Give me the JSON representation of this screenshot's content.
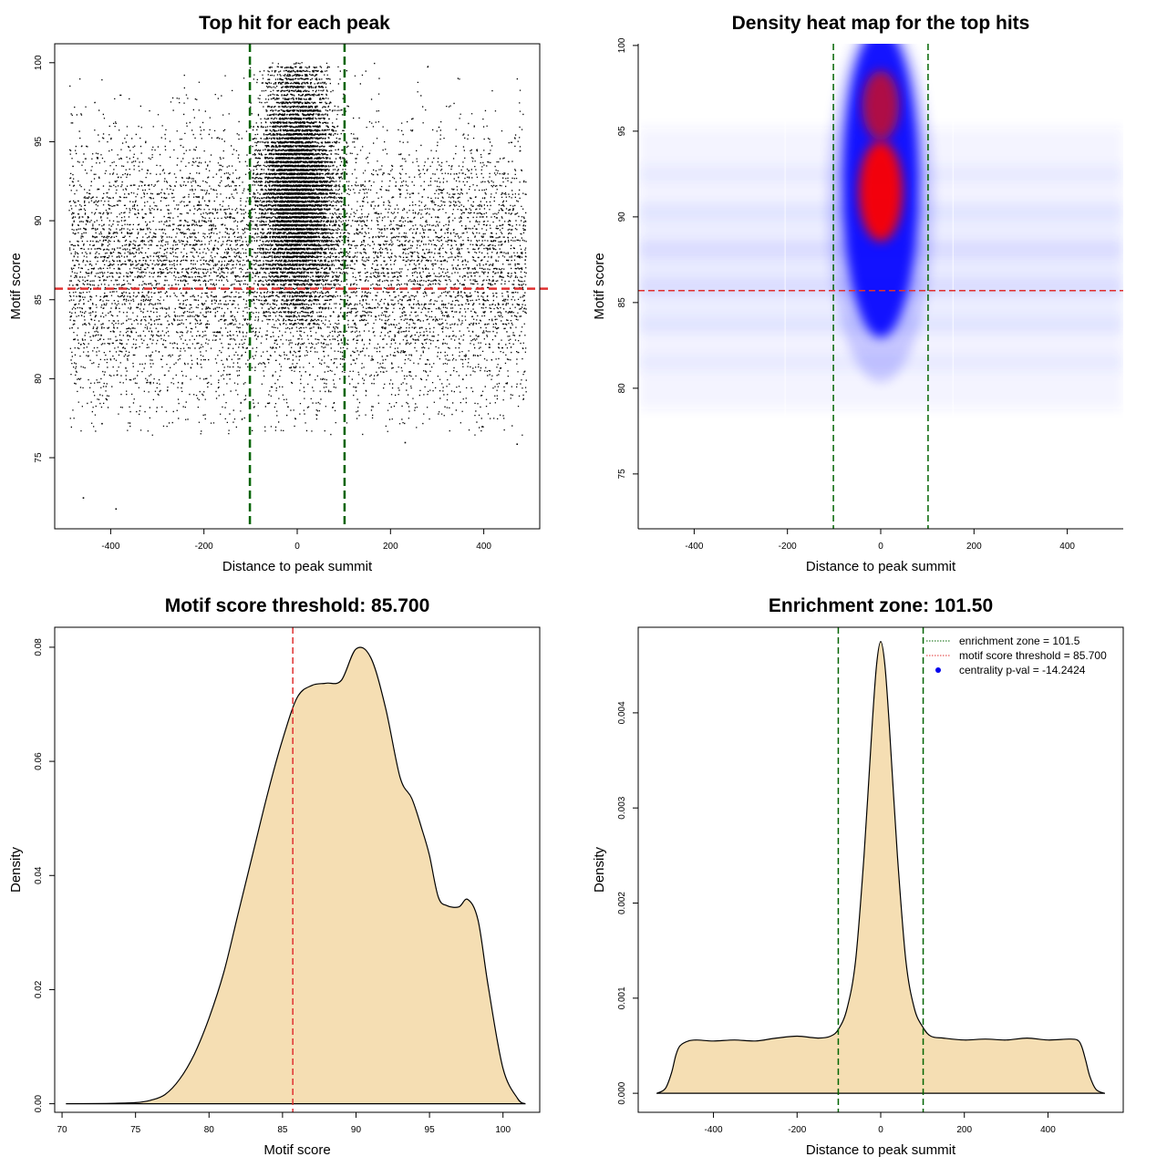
{
  "chart_data": [
    {
      "id": "scatter",
      "type": "scatter",
      "title": "Top hit for each peak",
      "xlabel": "Distance to peak summit",
      "ylabel": "Motif score",
      "xlim": [
        -520,
        520
      ],
      "ylim": [
        70.5,
        101.2
      ],
      "xticks": [
        -400,
        -200,
        0,
        200,
        400
      ],
      "yticks": [
        75,
        80,
        85,
        90,
        95,
        100
      ],
      "xtick_labels": [
        "-400",
        "-200",
        "0",
        "200",
        "400"
      ],
      "ytick_labels": [
        "75",
        "80",
        "85",
        "90",
        "95",
        "100"
      ],
      "vlines": [
        -101.5,
        101.5
      ],
      "hline": 85.7,
      "vline_color": "#006400",
      "hline_color": "#e03030",
      "point_color": "#000000",
      "description_of_points": {
        "background_x_range": [
          -490,
          490
        ],
        "background_y_mode": 87,
        "central_cluster_x": [
          -100,
          100
        ],
        "central_cluster_y_range": [
          83,
          100
        ]
      },
      "outliers": [
        [
          -460,
          72.5
        ],
        [
          -390,
          71.8
        ],
        [
          -420,
          77.2
        ],
        [
          230,
          76.0
        ],
        [
          470,
          75.9
        ]
      ]
    },
    {
      "id": "heatmap",
      "type": "heatmap",
      "title": "Density heat map for the top hits",
      "xlabel": "Distance to peak summit",
      "ylabel": "Motif score",
      "xlim": [
        -520,
        520
      ],
      "ylim": [
        71.8,
        100.1
      ],
      "xticks": [
        -400,
        -200,
        0,
        200,
        400
      ],
      "yticks": [
        75,
        80,
        85,
        90,
        95,
        100
      ],
      "xtick_labels": [
        "-400",
        "-200",
        "0",
        "200",
        "400"
      ],
      "ytick_labels": [
        "75",
        "80",
        "85",
        "90",
        "95",
        "100"
      ],
      "vlines": [
        -101.5,
        101.5
      ],
      "hline": 85.7,
      "vline_color": "#006400",
      "hline_color": "#e03030",
      "colors": [
        "#ffffff",
        "#0000ff",
        "#ff0000"
      ],
      "hotspot": {
        "x": 0,
        "y": 91.5
      }
    },
    {
      "id": "score_density",
      "type": "area",
      "title": "Motif score threshold: 85.700",
      "xlabel": "Motif score",
      "ylabel": "Density",
      "xlim": [
        69.5,
        102.5
      ],
      "ylim": [
        -0.0015,
        0.0835
      ],
      "xticks": [
        70,
        75,
        80,
        85,
        90,
        95,
        100
      ],
      "yticks": [
        0.0,
        0.02,
        0.04,
        0.06,
        0.08
      ],
      "xtick_labels": [
        "70",
        "75",
        "80",
        "85",
        "90",
        "95",
        "100"
      ],
      "ytick_labels": [
        "0.00",
        "0.02",
        "0.04",
        "0.06",
        "0.08"
      ],
      "vline": 85.7,
      "vline_color": "#e03030",
      "fill": "#f5deb3",
      "x": [
        70.3,
        73,
        75,
        76,
        77,
        78,
        79,
        80,
        81,
        82,
        83,
        84,
        85,
        86,
        87,
        88,
        89,
        90,
        91,
        92,
        93,
        93.8,
        94.5,
        95,
        95.6,
        96.2,
        97,
        97.6,
        98.3,
        99,
        100,
        101,
        101.5
      ],
      "values": [
        0,
        5e-05,
        0.0002,
        0.0006,
        0.0016,
        0.0043,
        0.0087,
        0.015,
        0.023,
        0.0335,
        0.044,
        0.0545,
        0.0638,
        0.0712,
        0.0733,
        0.0737,
        0.0742,
        0.0797,
        0.0782,
        0.0695,
        0.0572,
        0.0535,
        0.048,
        0.0435,
        0.0362,
        0.0347,
        0.0345,
        0.0358,
        0.0322,
        0.0205,
        0.0062,
        0.0009,
        0
      ]
    },
    {
      "id": "distance_density",
      "type": "area",
      "title": "Enrichment zone: 101.50",
      "xlabel": "Distance to peak summit",
      "ylabel": "Density",
      "xlim": [
        -580,
        580
      ],
      "ylim": [
        -0.0002,
        0.0049
      ],
      "xticks": [
        -400,
        -200,
        0,
        200,
        400
      ],
      "yticks": [
        0.0,
        0.001,
        0.002,
        0.003,
        0.004
      ],
      "xtick_labels": [
        "-400",
        "-200",
        "0",
        "200",
        "400"
      ],
      "ytick_labels": [
        "0.000",
        "0.001",
        "0.002",
        "0.003",
        "0.004"
      ],
      "vlines": [
        -101.5,
        101.5
      ],
      "vline_color": "#006400",
      "fill": "#f5deb3",
      "x": [
        -535,
        -515,
        -500,
        -490,
        -480,
        -460,
        -440,
        -400,
        -350,
        -300,
        -250,
        -200,
        -150,
        -120,
        -100,
        -80,
        -60,
        -40,
        -20,
        -10,
        0,
        10,
        20,
        40,
        60,
        80,
        100,
        120,
        150,
        200,
        250,
        300,
        350,
        400,
        450,
        470,
        480,
        490,
        500,
        515,
        535
      ],
      "values": [
        0,
        5e-05,
        0.00022,
        0.0004,
        0.0005,
        0.00055,
        0.00056,
        0.00055,
        0.00056,
        0.00055,
        0.00058,
        0.0006,
        0.00058,
        0.0006,
        0.00068,
        0.0009,
        0.0014,
        0.0025,
        0.0039,
        0.0045,
        0.00475,
        0.0045,
        0.0039,
        0.0025,
        0.0014,
        0.0009,
        0.0007,
        0.0006,
        0.00058,
        0.00056,
        0.00057,
        0.00056,
        0.00058,
        0.00056,
        0.00057,
        0.00056,
        0.0005,
        0.00035,
        0.00018,
        4e-05,
        0
      ],
      "legend": {
        "position": "top-right",
        "items": [
          {
            "label": "enrichment zone = 101.5",
            "color": "#006400",
            "style": "dotted-line"
          },
          {
            "label": "motif score threshold = 85.700",
            "color": "#e03030",
            "style": "dotted-line"
          },
          {
            "label": "centrality p-val = -14.2424",
            "color": "#0000ee",
            "style": "point"
          }
        ]
      }
    }
  ]
}
